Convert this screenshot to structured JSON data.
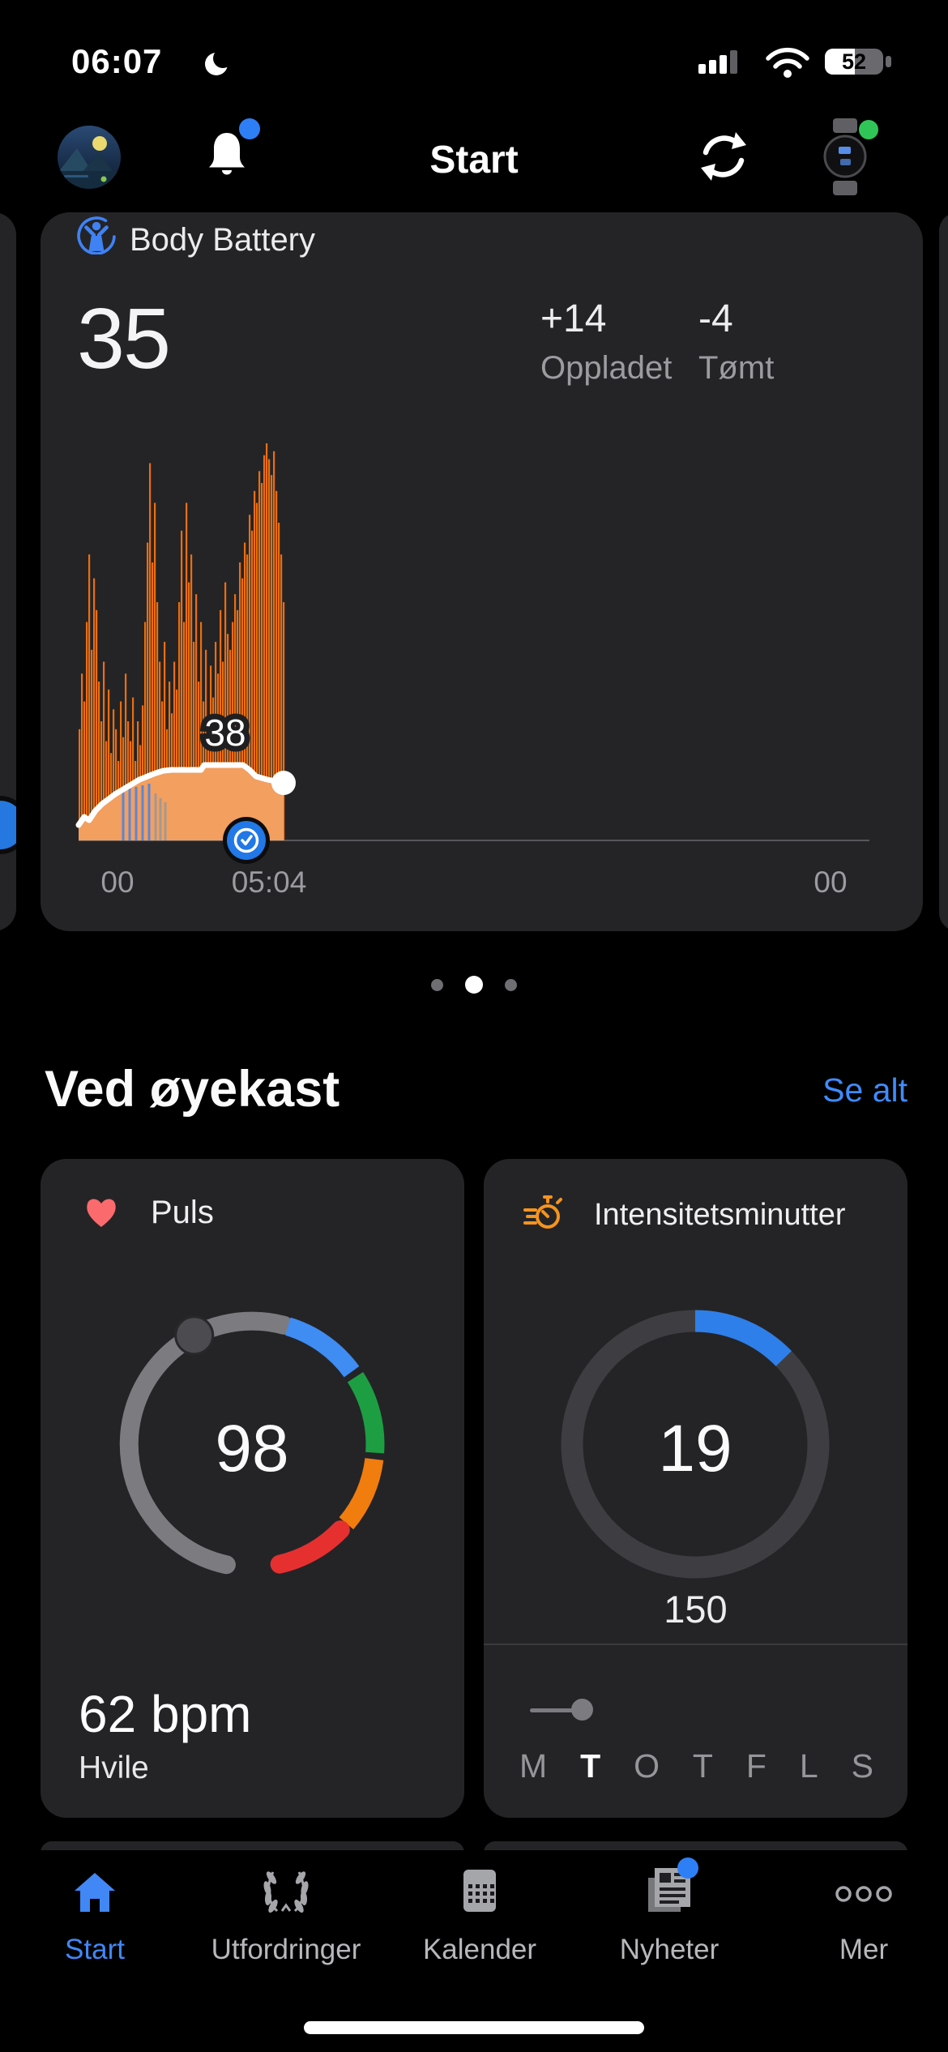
{
  "status_bar": {
    "time": "06:07",
    "battery": "52"
  },
  "header": {
    "title": "Start"
  },
  "body_battery": {
    "title": "Body Battery",
    "current": "35",
    "charged": "+14",
    "charged_label": "Oppladet",
    "drained": "-4",
    "drained_label": "Tømt",
    "marker_label": "38",
    "axis_start": "00",
    "axis_marker": "05:04",
    "axis_end": "00"
  },
  "chart_data": {
    "type": "area",
    "title": "Body Battery",
    "ylim": [
      0,
      100
    ],
    "x_axis_labels": [
      "00",
      "05:04",
      "00"
    ],
    "x_span_hours": 24,
    "current_value": 35,
    "charged": 14,
    "drained": -4,
    "marker": {
      "x_label": "05:04",
      "value": 38
    },
    "series": [
      {
        "name": "stress-spikes",
        "color": "#ec6e0e",
        "values": [
          28,
          42,
          35,
          55,
          72,
          48,
          66,
          58,
          40,
          30,
          45,
          25,
          38,
          22,
          33,
          28,
          20,
          35,
          26,
          42,
          30,
          25,
          36,
          20,
          30,
          24,
          34,
          55,
          75,
          95,
          70,
          85,
          60,
          45,
          35,
          50,
          28,
          40,
          32,
          45,
          38,
          60,
          78,
          55,
          85,
          65,
          72,
          50,
          62,
          40,
          55,
          35,
          48,
          30,
          44,
          36,
          50,
          42,
          58,
          45,
          65,
          52,
          48,
          55,
          62,
          58,
          70,
          66,
          75,
          72,
          82,
          78,
          88,
          85,
          93,
          90,
          97,
          100,
          96,
          92,
          98,
          88,
          80,
          72,
          60
        ]
      },
      {
        "name": "body-battery-line",
        "color": "#ffffff",
        "points": [
          [
            0,
            19
          ],
          [
            7,
            29
          ],
          [
            13,
            25
          ],
          [
            21,
            37
          ],
          [
            29,
            45
          ],
          [
            37,
            51
          ],
          [
            45,
            57
          ],
          [
            55,
            63
          ],
          [
            65,
            69
          ],
          [
            75,
            75
          ],
          [
            85,
            79
          ],
          [
            95,
            83
          ],
          [
            105,
            86
          ],
          [
            115,
            87
          ],
          [
            151,
            87
          ],
          [
            155,
            93
          ],
          [
            203,
            93
          ],
          [
            211,
            87
          ],
          [
            219,
            79
          ],
          [
            233,
            75
          ],
          [
            253,
            71
          ]
        ]
      }
    ],
    "rest_bars": [
      [
        55,
        60
      ],
      [
        63,
        64
      ],
      [
        71,
        66
      ],
      [
        79,
        68
      ],
      [
        87,
        70
      ]
    ],
    "drain_bars": [
      [
        95,
        58
      ],
      [
        101,
        52
      ],
      [
        107,
        47
      ]
    ]
  },
  "pager": {
    "count": 3,
    "active": 1
  },
  "glance": {
    "heading": "Ved øyekast",
    "see_all": "Se alt"
  },
  "pulse": {
    "title": "Puls",
    "value": "98",
    "resting": "62 bpm",
    "resting_label": "Hvile"
  },
  "intensity": {
    "title": "Intensitetsminutter",
    "value": "19",
    "goal": "150",
    "days": [
      "M",
      "T",
      "O",
      "T",
      "F",
      "L",
      "S"
    ],
    "active_day": 1
  },
  "tabs": [
    {
      "label": "Start",
      "active": true
    },
    {
      "label": "Utfordringer",
      "active": false
    },
    {
      "label": "Kalender",
      "active": false
    },
    {
      "label": "Nyheter",
      "active": false
    },
    {
      "label": "Mer",
      "active": false
    }
  ],
  "colors": {
    "accent_blue": "#3f8bff",
    "orange": "#ec6e0e",
    "tab_active": "#4187f5",
    "gauge": {
      "blue": "#3f8cf3",
      "green": "#1d9e43",
      "orange": "#f07d0e",
      "red": "#e63030"
    }
  }
}
